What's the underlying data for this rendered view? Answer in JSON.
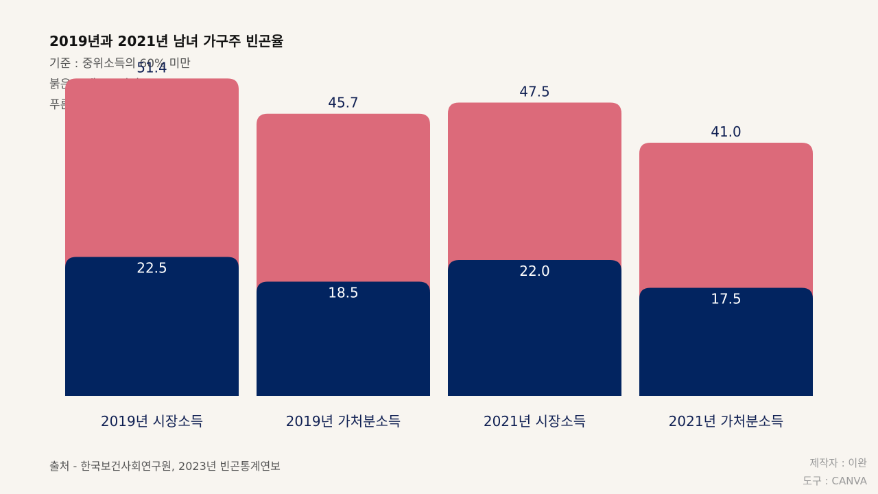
{
  "header": {
    "title": "2019년과 2021년 남녀 가구주 빈곤율",
    "lines": [
      "기준 : 중위소득의 60% 미만",
      "붉은 그래프 : 여성",
      "푸른 그래프 : 남성"
    ]
  },
  "chart_data": {
    "type": "bar",
    "categories": [
      "2019년 시장소득",
      "2019년 가처분소득",
      "2021년 시장소득",
      "2021년 가처분소득"
    ],
    "series": [
      {
        "name": "여성",
        "color": "#dc6a7a",
        "values": [
          51.4,
          45.7,
          47.5,
          41.0
        ]
      },
      {
        "name": "남성",
        "color": "#022460",
        "values": [
          22.5,
          18.5,
          22.0,
          17.5
        ]
      }
    ],
    "ylim": [
      0,
      57
    ],
    "grid": false,
    "value_label_color_female": "#0f1f52",
    "value_label_color_male": "#ffffff",
    "category_label_color": "#0f1f52"
  },
  "footer": {
    "source": "출처 - 한국보건사회연구원, 2023년 빈곤통계연보",
    "credit_lines": [
      "제작자 : 이완",
      "도구 : CANVA"
    ]
  }
}
